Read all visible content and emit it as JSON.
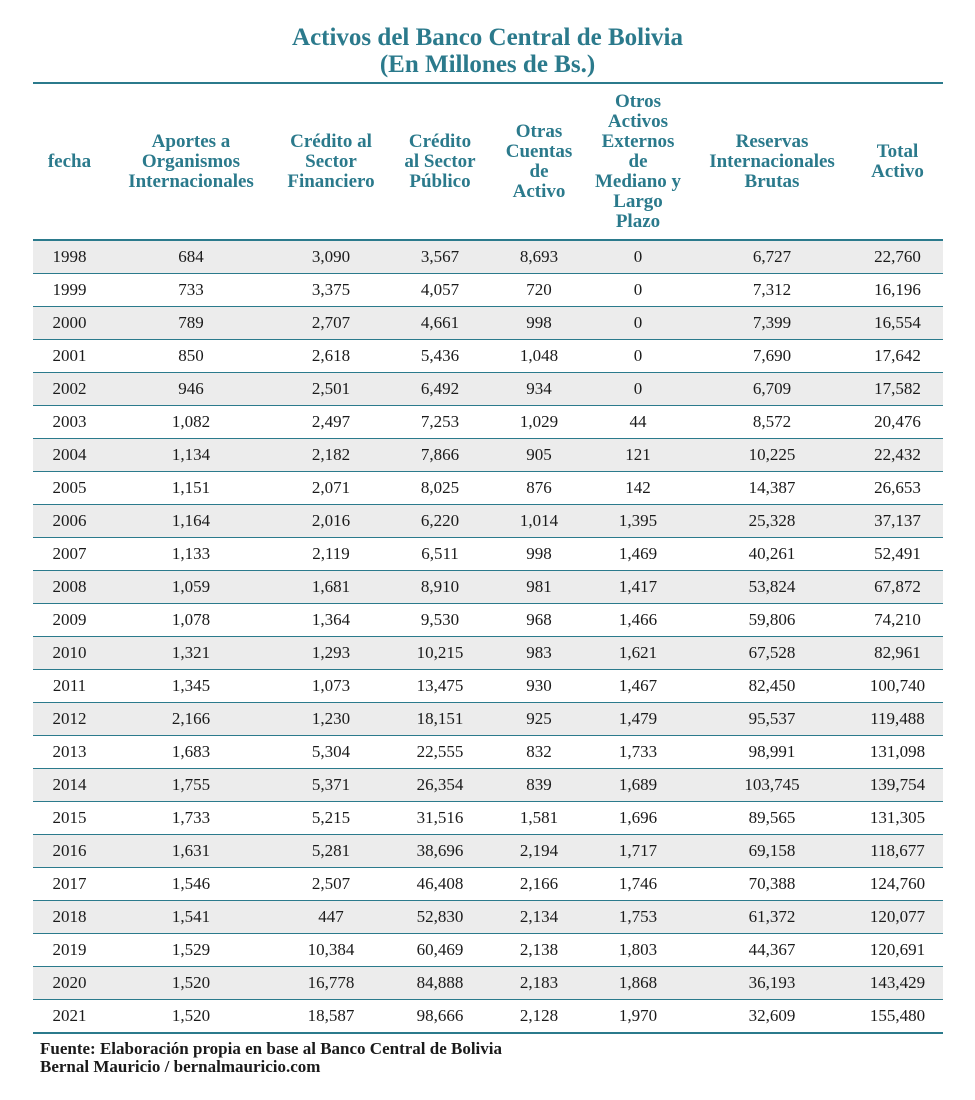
{
  "chart_data": {
    "type": "table",
    "title": "Activos del Banco Central de Bolivia",
    "subtitle": "(En Millones de Bs.)",
    "columns": [
      "fecha",
      "Aportes a Organismos Internacionales",
      "Crédito al Sector Financiero",
      "Crédito al Sector Público",
      "Otras Cuentas de Activo",
      "Otros Activos Externos de Mediano y Largo Plazo",
      "Reservas Internacionales Brutas",
      "Total Activo"
    ],
    "rows": [
      [
        "1998",
        "684",
        "3,090",
        "3,567",
        "8,693",
        "0",
        "6,727",
        "22,760"
      ],
      [
        "1999",
        "733",
        "3,375",
        "4,057",
        "720",
        "0",
        "7,312",
        "16,196"
      ],
      [
        "2000",
        "789",
        "2,707",
        "4,661",
        "998",
        "0",
        "7,399",
        "16,554"
      ],
      [
        "2001",
        "850",
        "2,618",
        "5,436",
        "1,048",
        "0",
        "7,690",
        "17,642"
      ],
      [
        "2002",
        "946",
        "2,501",
        "6,492",
        "934",
        "0",
        "6,709",
        "17,582"
      ],
      [
        "2003",
        "1,082",
        "2,497",
        "7,253",
        "1,029",
        "44",
        "8,572",
        "20,476"
      ],
      [
        "2004",
        "1,134",
        "2,182",
        "7,866",
        "905",
        "121",
        "10,225",
        "22,432"
      ],
      [
        "2005",
        "1,151",
        "2,071",
        "8,025",
        "876",
        "142",
        "14,387",
        "26,653"
      ],
      [
        "2006",
        "1,164",
        "2,016",
        "6,220",
        "1,014",
        "1,395",
        "25,328",
        "37,137"
      ],
      [
        "2007",
        "1,133",
        "2,119",
        "6,511",
        "998",
        "1,469",
        "40,261",
        "52,491"
      ],
      [
        "2008",
        "1,059",
        "1,681",
        "8,910",
        "981",
        "1,417",
        "53,824",
        "67,872"
      ],
      [
        "2009",
        "1,078",
        "1,364",
        "9,530",
        "968",
        "1,466",
        "59,806",
        "74,210"
      ],
      [
        "2010",
        "1,321",
        "1,293",
        "10,215",
        "983",
        "1,621",
        "67,528",
        "82,961"
      ],
      [
        "2011",
        "1,345",
        "1,073",
        "13,475",
        "930",
        "1,467",
        "82,450",
        "100,740"
      ],
      [
        "2012",
        "2,166",
        "1,230",
        "18,151",
        "925",
        "1,479",
        "95,537",
        "119,488"
      ],
      [
        "2013",
        "1,683",
        "5,304",
        "22,555",
        "832",
        "1,733",
        "98,991",
        "131,098"
      ],
      [
        "2014",
        "1,755",
        "5,371",
        "26,354",
        "839",
        "1,689",
        "103,745",
        "139,754"
      ],
      [
        "2015",
        "1,733",
        "5,215",
        "31,516",
        "1,581",
        "1,696",
        "89,565",
        "131,305"
      ],
      [
        "2016",
        "1,631",
        "5,281",
        "38,696",
        "2,194",
        "1,717",
        "69,158",
        "118,677"
      ],
      [
        "2017",
        "1,546",
        "2,507",
        "46,408",
        "2,166",
        "1,746",
        "70,388",
        "124,760"
      ],
      [
        "2018",
        "1,541",
        "447",
        "52,830",
        "2,134",
        "1,753",
        "61,372",
        "120,077"
      ],
      [
        "2019",
        "1,529",
        "10,384",
        "60,469",
        "2,138",
        "1,803",
        "44,367",
        "120,691"
      ],
      [
        "2020",
        "1,520",
        "16,778",
        "84,888",
        "2,183",
        "1,868",
        "36,193",
        "143,429"
      ],
      [
        "2021",
        "1,520",
        "18,587",
        "98,666",
        "2,128",
        "1,970",
        "32,609",
        "155,480"
      ]
    ],
    "source_lines": [
      "Fuente: Elaboración propia en base al Banco Central de Bolivia",
      "Bernal Mauricio / bernalmauricio.com"
    ]
  },
  "colors": {
    "accent": "#2b7a8c",
    "stripe": "#ececec"
  }
}
